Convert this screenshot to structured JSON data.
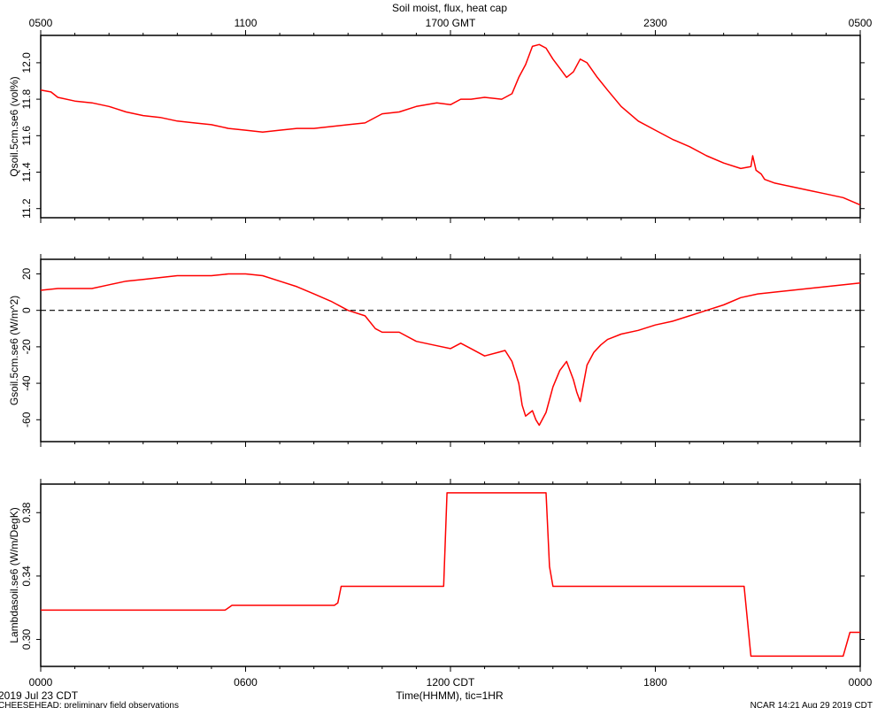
{
  "title": "Soil moist, flux, heat cap",
  "top_axis": {
    "tick_labels": [
      "0500",
      "1100",
      "1700 GMT",
      "2300",
      "0500"
    ],
    "hours": [
      0,
      6,
      12,
      18,
      24
    ]
  },
  "bottom_axis": {
    "tick_labels": [
      "0000",
      "0600",
      "1200 CDT",
      "1800",
      "0000"
    ],
    "hours": [
      0,
      6,
      12,
      18,
      24
    ],
    "xlabel": "Time(HHMM), tic=1HR"
  },
  "footer": {
    "date": "2019 Jul 23 CDT",
    "project": "CHEESEHEAD: preliminary field observations",
    "stamp": "NCAR 14:21 Aug 29 2019 CDT"
  },
  "colors": {
    "series": "#ff0000",
    "axes": "#000000",
    "zero_line": "#000000"
  },
  "chart_data": [
    {
      "type": "line",
      "ylabel": "Qsoil.5cm.se6 (vol%)",
      "ylim": [
        11.15,
        12.15
      ],
      "yticks": [
        11.2,
        11.4,
        11.6,
        11.8,
        12.0
      ],
      "ytick_labels": [
        "11.2",
        "11.4",
        "11.6",
        "11.8",
        "12.0"
      ],
      "x": [
        0,
        0.3,
        0.5,
        1.0,
        1.5,
        2.0,
        2.5,
        3.0,
        3.5,
        4.0,
        4.5,
        5.0,
        5.5,
        6.0,
        6.5,
        7.0,
        7.5,
        8.0,
        8.5,
        9.0,
        9.5,
        10.0,
        10.5,
        11.0,
        11.3,
        11.6,
        12.0,
        12.3,
        12.6,
        13.0,
        13.5,
        13.8,
        14.0,
        14.2,
        14.4,
        14.6,
        14.8,
        15.0,
        15.2,
        15.4,
        15.6,
        15.8,
        16.0,
        16.3,
        16.6,
        17.0,
        17.5,
        18.0,
        18.5,
        19.0,
        19.5,
        20.0,
        20.5,
        20.8,
        20.85,
        20.95,
        21.1,
        21.2,
        21.5,
        22.0,
        22.5,
        23.0,
        23.5,
        24.0
      ],
      "y": [
        11.85,
        11.84,
        11.81,
        11.79,
        11.78,
        11.76,
        11.73,
        11.71,
        11.7,
        11.68,
        11.67,
        11.66,
        11.64,
        11.63,
        11.62,
        11.63,
        11.64,
        11.64,
        11.65,
        11.66,
        11.67,
        11.72,
        11.73,
        11.76,
        11.77,
        11.78,
        11.77,
        11.8,
        11.8,
        11.81,
        11.8,
        11.83,
        11.92,
        11.99,
        12.09,
        12.1,
        12.08,
        12.02,
        11.97,
        11.92,
        11.95,
        12.02,
        12.0,
        11.92,
        11.85,
        11.76,
        11.68,
        11.63,
        11.58,
        11.54,
        11.49,
        11.45,
        11.42,
        11.43,
        11.49,
        11.41,
        11.39,
        11.36,
        11.34,
        11.32,
        11.3,
        11.28,
        11.26,
        11.22
      ]
    },
    {
      "type": "line",
      "ylabel": "Gsoil.5cm.se6 (W/m^2)",
      "ylim": [
        -72,
        28
      ],
      "yticks": [
        -60,
        -40,
        -20,
        0,
        20
      ],
      "ytick_labels": [
        "-60",
        "-40",
        "-20",
        "0",
        "20"
      ],
      "zero_line": true,
      "x": [
        0,
        0.5,
        1.0,
        1.5,
        2.0,
        2.5,
        3.0,
        3.5,
        4.0,
        4.5,
        5.0,
        5.5,
        6.0,
        6.5,
        7.0,
        7.5,
        8.0,
        8.5,
        9.0,
        9.5,
        9.8,
        10.0,
        10.5,
        11.0,
        11.5,
        12.0,
        12.3,
        12.6,
        13.0,
        13.4,
        13.6,
        13.8,
        14.0,
        14.1,
        14.2,
        14.4,
        14.5,
        14.6,
        14.8,
        15.0,
        15.2,
        15.4,
        15.6,
        15.7,
        15.8,
        16.0,
        16.2,
        16.4,
        16.6,
        17.0,
        17.5,
        18.0,
        18.5,
        19.0,
        19.5,
        20.0,
        20.5,
        21.0,
        22.0,
        23.0,
        24.0
      ],
      "y": [
        11,
        12,
        12,
        12,
        14,
        16,
        17,
        18,
        19,
        19,
        19,
        20,
        20,
        19,
        16,
        13,
        9,
        5,
        0,
        -3,
        -10,
        -12,
        -12,
        -17,
        -19,
        -21,
        -18,
        -21,
        -25,
        -23,
        -22,
        -28,
        -40,
        -52,
        -58,
        -55,
        -60,
        -63,
        -56,
        -42,
        -33,
        -28,
        -38,
        -45,
        -50,
        -30,
        -23,
        -19,
        -16,
        -13,
        -11,
        -8,
        -6,
        -3,
        0,
        3,
        7,
        9,
        11,
        13,
        15
      ]
    },
    {
      "type": "line",
      "ylabel": "Lambdasoil.se6 (W/m/DegK)",
      "ylim": [
        0.283,
        0.398
      ],
      "yticks": [
        0.3,
        0.34,
        0.38
      ],
      "ytick_labels": [
        "0.30",
        "0.34",
        "0.38"
      ],
      "x": [
        0,
        5.4,
        5.5,
        5.6,
        8.6,
        8.7,
        8.8,
        11.8,
        11.9,
        14.8,
        14.9,
        15.0,
        20.6,
        20.8,
        23.5,
        23.7,
        24.0
      ],
      "y": [
        0.3185,
        0.3185,
        0.32,
        0.3215,
        0.3215,
        0.323,
        0.3335,
        0.3335,
        0.3925,
        0.3925,
        0.346,
        0.3335,
        0.3335,
        0.2895,
        0.2895,
        0.3045,
        0.3045
      ]
    }
  ]
}
